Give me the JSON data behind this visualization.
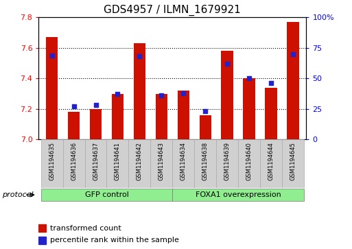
{
  "title": "GDS4957 / ILMN_1679921",
  "samples": [
    "GSM1194635",
    "GSM1194636",
    "GSM1194637",
    "GSM1194641",
    "GSM1194642",
    "GSM1194643",
    "GSM1194634",
    "GSM1194638",
    "GSM1194639",
    "GSM1194640",
    "GSM1194644",
    "GSM1194645"
  ],
  "transformed_count": [
    7.67,
    7.18,
    7.2,
    7.3,
    7.63,
    7.3,
    7.32,
    7.16,
    7.58,
    7.4,
    7.34,
    7.77
  ],
  "percentile_rank": [
    69,
    27,
    28,
    37,
    68,
    36,
    38,
    23,
    62,
    50,
    46,
    70
  ],
  "ymin": 7.0,
  "ymax": 7.8,
  "yticks_left": [
    7.0,
    7.2,
    7.4,
    7.6,
    7.8
  ],
  "yticks_right": [
    0,
    25,
    50,
    75,
    100
  ],
  "bar_color": "#cc1100",
  "dot_color": "#2222cc",
  "group1_label": "GFP control",
  "group2_label": "FOXA1 overexpression",
  "group1_count": 6,
  "group2_count": 6,
  "protocol_label": "protocol",
  "legend1": "transformed count",
  "legend2": "percentile rank within the sample",
  "group_color": "#90ee90",
  "cell_color": "#d0d0d0",
  "cell_edge_color": "#aaaaaa",
  "title_fontsize": 11,
  "tick_fontsize": 8,
  "bar_width": 0.55
}
